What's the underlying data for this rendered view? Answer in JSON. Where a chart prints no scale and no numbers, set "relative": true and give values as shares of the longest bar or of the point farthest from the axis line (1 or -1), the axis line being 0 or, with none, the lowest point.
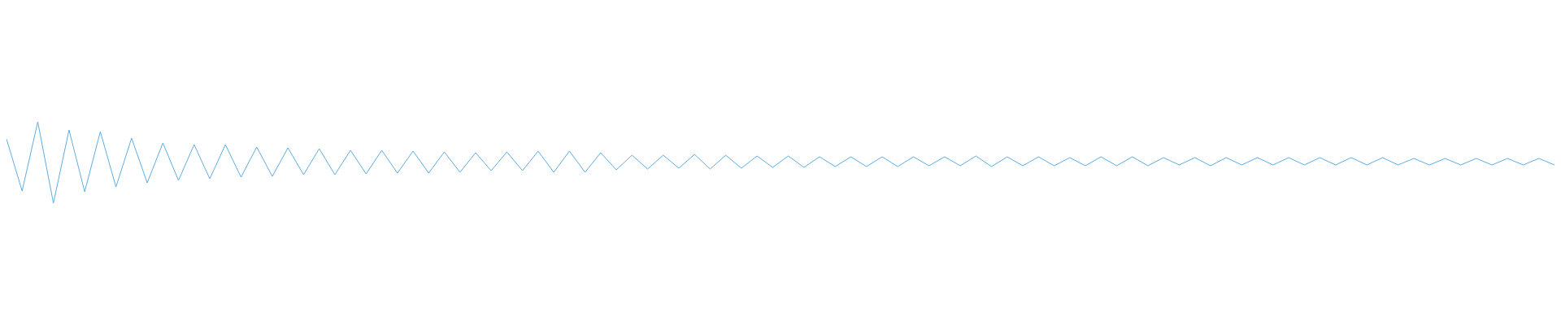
{
  "chart_data": {
    "type": "line",
    "relative": true,
    "marker": "none",
    "line_style": "solid",
    "categories": [
      null,
      null,
      null,
      null,
      null,
      null,
      null,
      null,
      null,
      null,
      null,
      null,
      null,
      null,
      null,
      null,
      null,
      null,
      null,
      null,
      null,
      null,
      null,
      null,
      null,
      null,
      null,
      null,
      null,
      null,
      null,
      null,
      null,
      null,
      null,
      null,
      null,
      null,
      null,
      null,
      null,
      null,
      null,
      null,
      null,
      null,
      null,
      null,
      null,
      null,
      null,
      null,
      null,
      null,
      null,
      null,
      null,
      null,
      null,
      null,
      null,
      null,
      null,
      null,
      null,
      null,
      null,
      null,
      null,
      null,
      null,
      null,
      null,
      null,
      null,
      null,
      null,
      null,
      null,
      null,
      null,
      null,
      null,
      null,
      null,
      null,
      null,
      null,
      null,
      null,
      null,
      null,
      null,
      null,
      null,
      null,
      null,
      null,
      null,
      null
    ],
    "series": [
      {
        "color": "#5dade2",
        "values": [
          0.79,
          0.15,
          1.0,
          0,
          0.9,
          0.14,
          0.88,
          0.2,
          0.8,
          0.25,
          0.74,
          0.28,
          0.72,
          0.3,
          0.72,
          0.32,
          0.69,
          0.33,
          0.68,
          0.35,
          0.67,
          0.35,
          0.65,
          0.36,
          0.65,
          0.37,
          0.64,
          0.37,
          0.63,
          0.38,
          0.62,
          0.4,
          0.63,
          0.4,
          0.64,
          0.38,
          0.64,
          0.38,
          0.62,
          0.41,
          0.59,
          0.42,
          0.59,
          0.43,
          0.6,
          0.42,
          0.59,
          0.43,
          0.58,
          0.44,
          0.58,
          0.44,
          0.57,
          0.45,
          0.57,
          0.45,
          0.57,
          0.45,
          0.57,
          0.46,
          0.57,
          0.46,
          0.58,
          0.45,
          0.57,
          0.46,
          0.57,
          0.46,
          0.56,
          0.46,
          0.57,
          0.46,
          0.57,
          0.46,
          0.56,
          0.47,
          0.56,
          0.46,
          0.56,
          0.47,
          0.56,
          0.47,
          0.56,
          0.47,
          0.56,
          0.47,
          0.56,
          0.47,
          0.56,
          0.47,
          0.55,
          0.47,
          0.55,
          0.47,
          0.55,
          0.47,
          0.55,
          0.47,
          0.55,
          0.47
        ]
      }
    ]
  }
}
